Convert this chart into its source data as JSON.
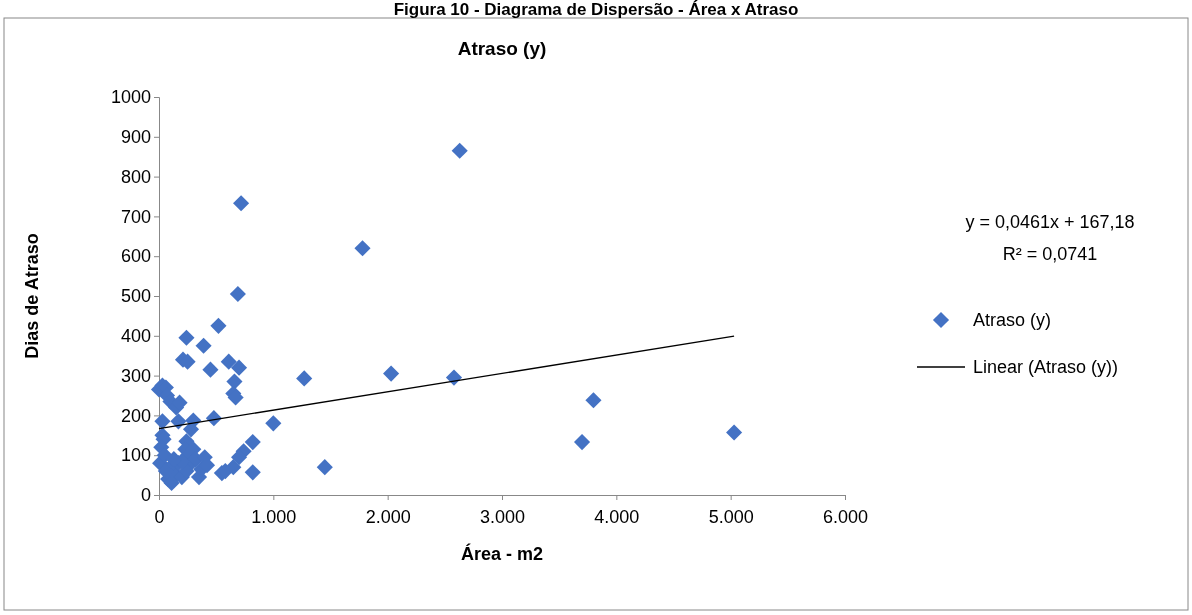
{
  "chart_data": {
    "type": "scatter",
    "title": "Atraso (y)",
    "xlabel": "Área - m2",
    "ylabel": "Dias de Atraso",
    "annotations": [
      "Figura 10 - Diagrama de Dispersão - Área x Atraso",
      "y = 0,0461x + 167,18",
      "R² = 0,0741"
    ],
    "xlim": [
      0,
      6000
    ],
    "xticks": [
      0,
      {
        "value": 1000,
        "label": "1.000"
      },
      {
        "value": 2000,
        "label": "2.000"
      },
      {
        "value": 3000,
        "label": "3.000"
      },
      {
        "value": 4000,
        "label": "4.000"
      },
      {
        "value": 5000,
        "label": "5.000"
      },
      {
        "value": 6000,
        "label": "6.000"
      }
    ],
    "ylim": [
      0,
      1000
    ],
    "yticks": [
      0,
      100,
      200,
      300,
      400,
      500,
      600,
      700,
      800,
      900,
      1000
    ],
    "grid": false,
    "legend": "right",
    "series": [
      {
        "name": "Atraso (y)",
        "marker": "diamond",
        "color": "#4472c4",
        "x": [
          2630,
          718,
          1780,
          690,
          520,
          240,
          390,
          210,
          250,
          610,
          700,
          450,
          660,
          650,
          670,
          1270,
          2030,
          2580,
          3800,
          3700,
          5030,
          1450,
          1000,
          820,
          820,
          740,
          700,
          480,
          300,
          280,
          170,
          30,
          0,
          30,
          60,
          70,
          100,
          150,
          180,
          30,
          40,
          20,
          10,
          50,
          100,
          80,
          110,
          150,
          170,
          200,
          240,
          230,
          260,
          280,
          300,
          320,
          350,
          370,
          400,
          420,
          550,
          580,
          650,
          240,
          200,
          130,
          60
        ],
        "values": [
          865,
          733,
          620,
          505,
          425,
          395,
          375,
          340,
          335,
          335,
          320,
          315,
          285,
          255,
          245,
          293,
          305,
          295,
          238,
          133,
          157,
          70,
          180,
          133,
          57,
          110,
          95,
          193,
          187,
          165,
          185,
          185,
          265,
          275,
          270,
          250,
          235,
          220,
          232,
          150,
          140,
          120,
          80,
          100,
          70,
          40,
          30,
          50,
          80,
          45,
          135,
          115,
          100,
          80,
          115,
          90,
          45,
          65,
          95,
          75,
          55,
          60,
          70,
          60,
          85,
          90,
          60
        ]
      },
      {
        "name": "Linear (Atraso (y))",
        "type": "line",
        "marker": "none",
        "line_style": "solid",
        "color": "#000000",
        "x": [
          0,
          5030
        ],
        "values": [
          167,
          399
        ]
      }
    ]
  }
}
